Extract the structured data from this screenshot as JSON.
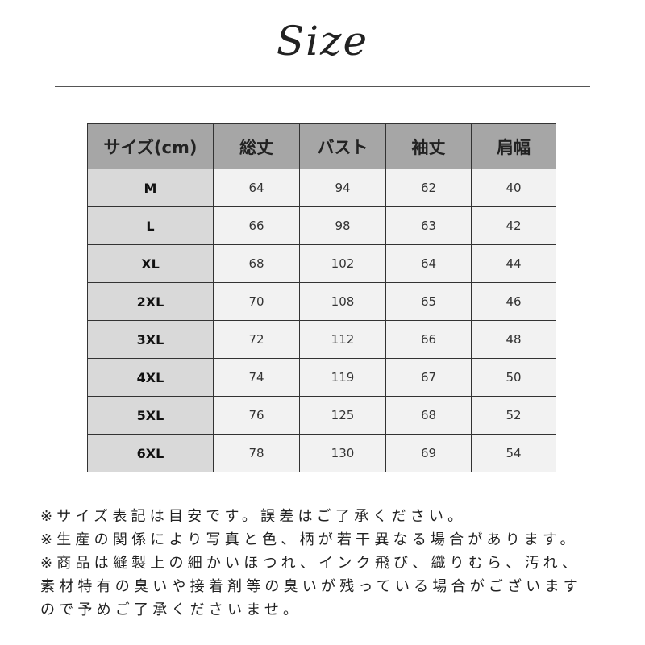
{
  "title": "Size",
  "table": {
    "headers": [
      "サイズ(cm)",
      "総丈",
      "バスト",
      "袖丈",
      "肩幅"
    ],
    "rows": [
      [
        "M",
        "64",
        "94",
        "62",
        "40"
      ],
      [
        "L",
        "66",
        "98",
        "63",
        "42"
      ],
      [
        "XL",
        "68",
        "102",
        "64",
        "44"
      ],
      [
        "2XL",
        "70",
        "108",
        "65",
        "46"
      ],
      [
        "3XL",
        "72",
        "112",
        "66",
        "48"
      ],
      [
        "4XL",
        "74",
        "119",
        "67",
        "50"
      ],
      [
        "5XL",
        "76",
        "125",
        "68",
        "52"
      ],
      [
        "6XL",
        "78",
        "130",
        "69",
        "54"
      ]
    ]
  },
  "notes": [
    "※サイズ表記は目安です。誤差はご了承ください。",
    "※生産の関係により写真と色、柄が若干異なる場合があります。",
    "※商品は縫製上の細かいほつれ、インク飛び、織りむら、汚れ、",
    "素材特有の臭いや接着剤等の臭いが残っている場合がございます",
    "ので予めご了承くださいませ。"
  ]
}
